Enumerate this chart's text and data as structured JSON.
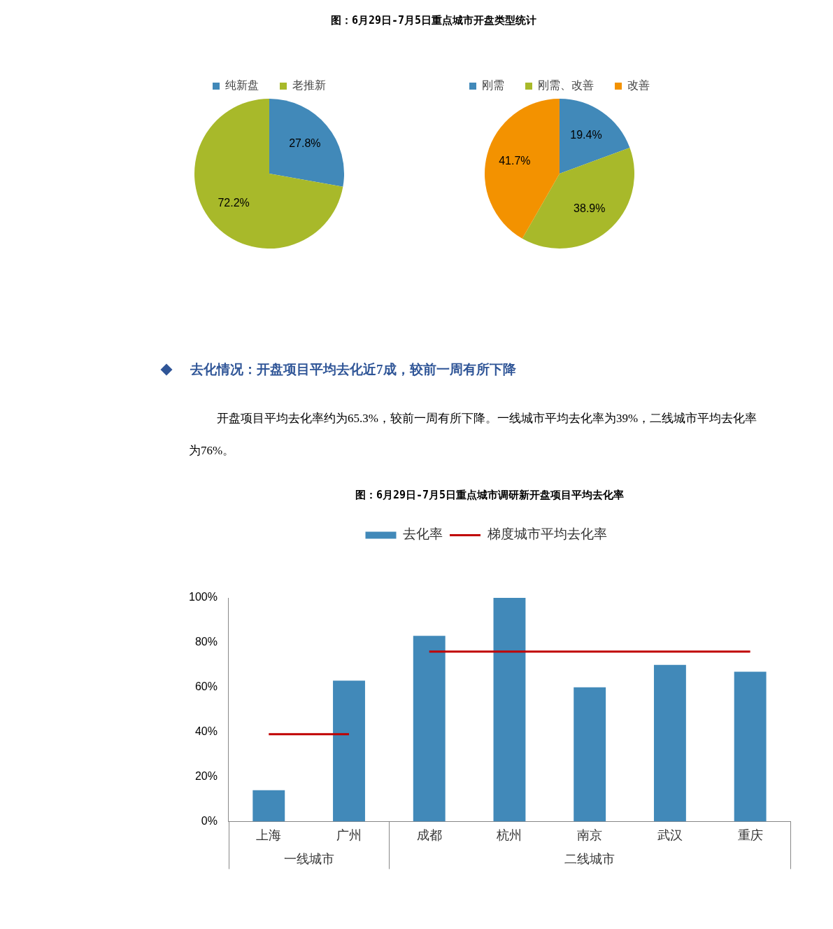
{
  "chart_data": [
    {
      "type": "pie",
      "title": "图：6月29日-7月5日重点城市开盘类型统计",
      "categories": [
        "纯新盘",
        "老推新"
      ],
      "values": [
        27.8,
        72.2
      ],
      "colors": [
        "#4189b9",
        "#a8b92a"
      ],
      "value_labels": [
        "27.8%",
        "72.2%"
      ],
      "legend": "top"
    },
    {
      "type": "pie",
      "categories": [
        "刚需",
        "刚需、改善",
        "改善"
      ],
      "values": [
        19.4,
        38.9,
        41.7
      ],
      "colors": [
        "#4189b9",
        "#a8b92a",
        "#f39200"
      ],
      "value_labels": [
        "19.4%",
        "38.9%",
        "41.7%"
      ],
      "legend": "top"
    },
    {
      "type": "bar",
      "title": "图：6月29日-7月5日重点城市调研新开盘项目平均去化率",
      "categories": [
        "上海",
        "广州",
        "成都",
        "杭州",
        "南京",
        "武汉",
        "重庆"
      ],
      "series": [
        {
          "name": "去化率",
          "type": "bar",
          "color": "#4189b9",
          "values": [
            14,
            63,
            83,
            100,
            60,
            70,
            67
          ]
        },
        {
          "name": "梯度城市平均去化率",
          "type": "line",
          "color": "#c00000",
          "values": [
            39,
            39,
            76,
            76,
            76,
            76,
            76
          ]
        }
      ],
      "ylim": [
        0,
        100
      ],
      "yticks": [
        {
          "value": 0,
          "label": "0%"
        },
        {
          "value": 20,
          "label": "20%"
        },
        {
          "value": 40,
          "label": "40%"
        },
        {
          "value": 60,
          "label": "60%"
        },
        {
          "value": 80,
          "label": "80%"
        },
        {
          "value": 100,
          "label": "100%"
        }
      ],
      "grid": false,
      "legend": "top",
      "marker": "none",
      "annotations": [
        "去化情况：开盘项目平均去化近7成，较前一周有所下降",
        "开盘项目平均去化率约为65.3%，较前一周有所下降。一线城市平均去化率为39%，二线城市平均去化率为76%。",
        "一线城市",
        "二线城市"
      ]
    }
  ]
}
